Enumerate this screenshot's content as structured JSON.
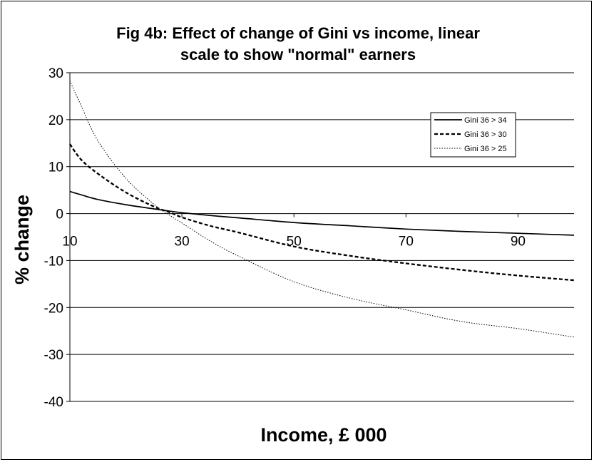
{
  "chart_data": {
    "type": "line",
    "title_lines": [
      "Fig 4b: Effect of change of Gini vs income, linear",
      "scale to show \"normal\" earners"
    ],
    "xlabel": "Income, £ 000",
    "ylabel": "% change",
    "xlim": [
      10,
      100
    ],
    "ylim": [
      -40,
      30
    ],
    "x_ticks": [
      10,
      30,
      50,
      70,
      90
    ],
    "x_tick_labels": [
      "10",
      "30",
      "50",
      "70",
      "90"
    ],
    "y_ticks": [
      30,
      20,
      10,
      0,
      -10,
      -20,
      -30,
      -40
    ],
    "y_tick_labels": [
      "30",
      "20",
      "10",
      "0",
      "-10",
      "-20",
      "-30",
      "-40"
    ],
    "grid": "horizontal",
    "legend_position": "top-right",
    "series": [
      {
        "name": "Gini 36 > 34",
        "style": "solid",
        "x": [
          10,
          12,
          15,
          20,
          25,
          28,
          30,
          35,
          40,
          50,
          60,
          70,
          80,
          90,
          100
        ],
        "y": [
          4.7,
          4.0,
          3.0,
          1.9,
          1.0,
          0.5,
          0.2,
          -0.4,
          -0.9,
          -1.9,
          -2.6,
          -3.3,
          -3.8,
          -4.2,
          -4.6
        ]
      },
      {
        "name": "Gini 36 > 30",
        "style": "dashed",
        "x": [
          10,
          12,
          15,
          20,
          25,
          28,
          30,
          35,
          40,
          50,
          60,
          70,
          80,
          90,
          100
        ],
        "y": [
          14.8,
          11.5,
          8.5,
          4.5,
          1.5,
          0.2,
          -0.8,
          -2.6,
          -4.0,
          -7.0,
          -9.0,
          -10.6,
          -12.0,
          -13.2,
          -14.2
        ]
      },
      {
        "name": "Gini 36 > 25",
        "style": "dotted",
        "x": [
          10,
          12,
          15,
          20,
          25,
          28,
          30,
          35,
          40,
          50,
          60,
          70,
          80,
          90,
          100
        ],
        "y": [
          28.3,
          23.0,
          15.5,
          7.5,
          2.0,
          -0.5,
          -2.0,
          -5.8,
          -9.0,
          -14.5,
          -18.0,
          -20.5,
          -23.0,
          -24.5,
          -26.3
        ]
      }
    ]
  }
}
